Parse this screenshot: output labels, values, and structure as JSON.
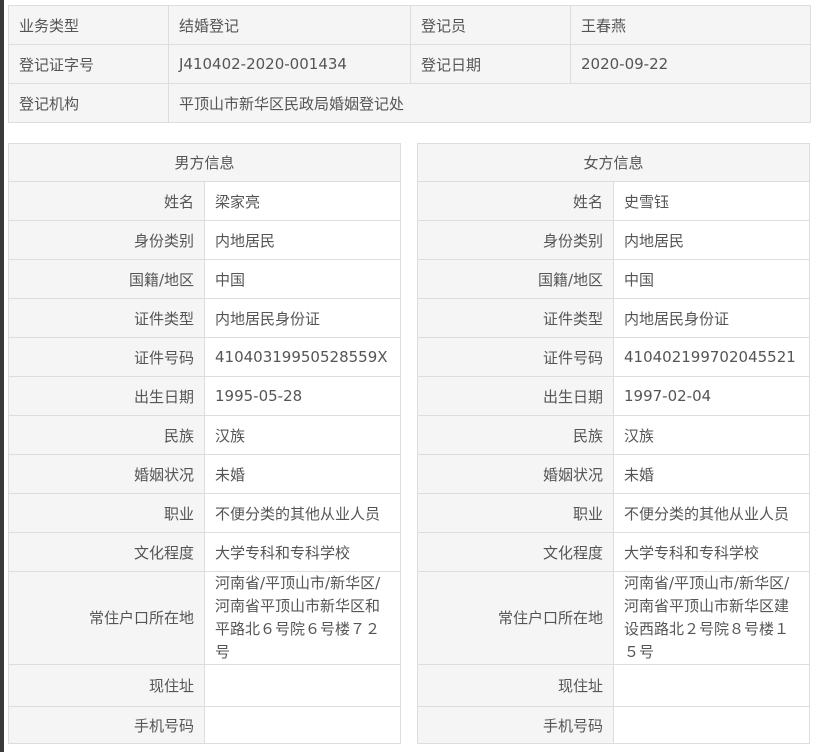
{
  "summary": {
    "rows": [
      [
        {
          "label": "业务类型",
          "value": "结婚登记"
        },
        {
          "label": "登记员",
          "value": "王春燕"
        }
      ],
      [
        {
          "label": "登记证字号",
          "value": "J410402-2020-001434"
        },
        {
          "label": "登记日期",
          "value": "2020-09-22"
        }
      ]
    ],
    "agency": {
      "label": "登记机构",
      "value": "平顶山市新华区民政局婚姻登记处"
    }
  },
  "labels": [
    "姓名",
    "身份类别",
    "国籍/地区",
    "证件类型",
    "证件号码",
    "出生日期",
    "民族",
    "婚姻状况",
    "职业",
    "文化程度",
    "常住户口所在地",
    "现住址",
    "手机号码"
  ],
  "male": {
    "title": "男方信息",
    "values": [
      "梁家亮",
      "内地居民",
      "中国",
      "内地居民身份证",
      "41040319950528559X",
      "1995-05-28",
      "汉族",
      "未婚",
      "不便分类的其他从业人员",
      "大学专科和专科学校",
      "河南省/平顶山市/新华区/河南省平顶山市新华区和平路北６号院６号楼７２号",
      "",
      ""
    ]
  },
  "female": {
    "title": "女方信息",
    "values": [
      "史雪钰",
      "内地居民",
      "中国",
      "内地居民身份证",
      "410402199702045521",
      "1997-02-04",
      "汉族",
      "未婚",
      "不便分类的其他从业人员",
      "大学专科和专科学校",
      "河南省/平顶山市/新华区/河南省平顶山市新华区建设西路北２号院８号楼１５号",
      "",
      ""
    ]
  }
}
